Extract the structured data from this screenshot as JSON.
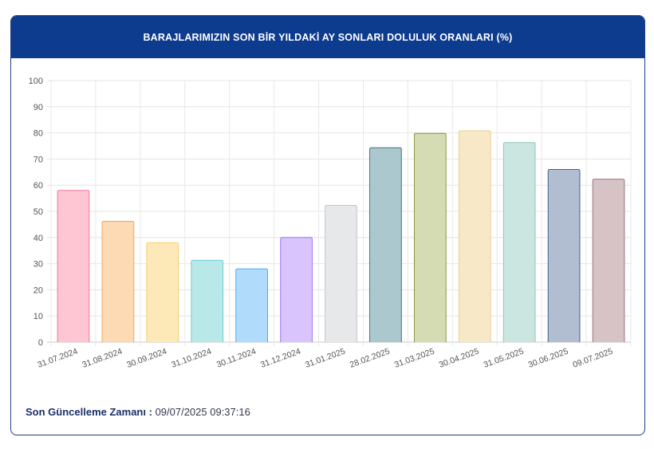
{
  "header": {
    "title": "BARAJLARIMIZIN SON BİR YILDAKİ AY SONLARI DOLULUK ORANLARI (%)"
  },
  "chart_data": {
    "type": "bar",
    "title": "BARAJLARIMIZIN SON BİR YILDAKİ AY SONLARI DOLULUK ORANLARI (%)",
    "categories": [
      "31.07.2024",
      "31.08.2024",
      "30.09.2024",
      "31.10.2024",
      "30.11.2024",
      "31.12.2024",
      "31.01.2025",
      "28.02.2025",
      "31.03.2025",
      "30.04.2025",
      "31.05.2025",
      "30.06.2025",
      "09.07.2025"
    ],
    "values": [
      58,
      46.2,
      38,
      31.3,
      28,
      40,
      52.3,
      74.3,
      79.8,
      80.8,
      76.3,
      66,
      62.3
    ],
    "ylim": [
      0,
      100
    ],
    "yticks": [
      0,
      10,
      20,
      30,
      40,
      50,
      60,
      70,
      80,
      90,
      100
    ],
    "grid": true,
    "colors": {
      "fill": [
        "#fec5d3",
        "#fdd9b4",
        "#fde9b7",
        "#b9e8e8",
        "#b0dbfb",
        "#d9c4fe",
        "#e7e8ea",
        "#acc8cf",
        "#d5dbb3",
        "#f7e9c8",
        "#cbe6e0",
        "#b1bdd0",
        "#d7c2c6"
      ],
      "border": [
        "#f07a98",
        "#f3a65c",
        "#f5cd6e",
        "#6fcfcf",
        "#4fa9f0",
        "#a077f5",
        "#c4c6cb",
        "#46717b",
        "#8a9641",
        "#e9cd8c",
        "#8ec8bb",
        "#4a5f86",
        "#9d7780"
      ]
    }
  },
  "footer": {
    "label": "Son Güncelleme Zamanı :",
    "value": "09/07/2025 09:37:16"
  }
}
